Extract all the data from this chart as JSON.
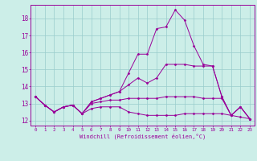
{
  "xlabel": "Windchill (Refroidissement éolien,°C)",
  "background_color": "#cceee8",
  "line_color": "#990099",
  "grid_color": "#99cccc",
  "x_ticks": [
    0,
    1,
    2,
    3,
    4,
    5,
    6,
    7,
    8,
    9,
    10,
    11,
    12,
    13,
    14,
    15,
    16,
    17,
    18,
    19,
    20,
    21,
    22,
    23
  ],
  "y_ticks": [
    12,
    13,
    14,
    15,
    16,
    17,
    18
  ],
  "ylim": [
    11.7,
    18.8
  ],
  "xlim": [
    -0.5,
    23.5
  ],
  "series": [
    [
      13.4,
      12.9,
      12.5,
      12.8,
      12.9,
      12.4,
      12.7,
      12.8,
      12.8,
      12.8,
      12.5,
      12.4,
      12.3,
      12.3,
      12.3,
      12.3,
      12.4,
      12.4,
      12.4,
      12.4,
      12.4,
      12.3,
      12.2,
      12.1
    ],
    [
      13.4,
      12.9,
      12.5,
      12.8,
      12.9,
      12.4,
      13.0,
      13.1,
      13.2,
      13.2,
      13.3,
      13.3,
      13.3,
      13.3,
      13.4,
      13.4,
      13.4,
      13.4,
      13.3,
      13.3,
      13.3,
      12.3,
      12.8,
      12.1
    ],
    [
      13.4,
      12.9,
      12.5,
      12.8,
      12.9,
      12.4,
      13.1,
      13.3,
      13.5,
      13.7,
      14.1,
      14.5,
      14.2,
      14.5,
      15.3,
      15.3,
      15.3,
      15.2,
      15.2,
      15.2,
      13.4,
      12.3,
      12.8,
      12.1
    ],
    [
      13.4,
      12.9,
      12.5,
      12.8,
      12.9,
      12.4,
      13.1,
      13.3,
      13.5,
      13.7,
      14.8,
      15.9,
      15.9,
      17.4,
      17.5,
      18.5,
      17.9,
      16.4,
      15.3,
      15.2,
      13.4,
      12.3,
      12.8,
      12.1
    ]
  ]
}
